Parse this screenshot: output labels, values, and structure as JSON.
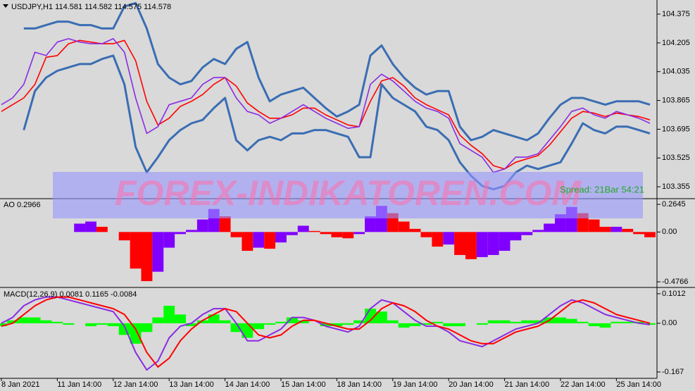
{
  "chart_data": [
    {
      "type": "line",
      "title": "USDJPY,H1  114.581 114.582 114.575 114.578",
      "annotation": "Spread: 21Bar  54:21",
      "watermark": "FOREX-INDIKATOREN.COM",
      "ylim": [
        103.293,
        104.45
      ],
      "yticks": [
        104.375,
        104.205,
        104.035,
        103.865,
        103.695,
        103.525,
        103.355
      ],
      "series": [
        {
          "color": "#3a6db3",
          "values": [
            null,
            null,
            104.29,
            104.29,
            104.31,
            104.33,
            104.33,
            104.31,
            104.31,
            104.29,
            104.29,
            104.42,
            104.44,
            104.29,
            104.08,
            104.0,
            103.96,
            103.98,
            104.06,
            104.11,
            104.08,
            104.17,
            104.21,
            104.0,
            103.86,
            103.9,
            103.92,
            103.94,
            103.88,
            103.82,
            103.77,
            103.8,
            103.84,
            104.13,
            104.19,
            104.08,
            104.0,
            103.94,
            103.9,
            103.92,
            103.92,
            103.71,
            103.63,
            103.65,
            103.69,
            103.67,
            103.65,
            103.63,
            103.67,
            103.76,
            103.84,
            103.88,
            103.88,
            103.86,
            103.84,
            103.86,
            103.86,
            103.86,
            103.84
          ]
        },
        {
          "color": "#3a6db3",
          "values": [
            null,
            null,
            103.69,
            103.92,
            104.0,
            104.04,
            104.06,
            104.08,
            104.08,
            104.11,
            104.13,
            103.96,
            103.59,
            103.44,
            103.53,
            103.63,
            103.69,
            103.73,
            103.75,
            103.82,
            103.88,
            103.63,
            103.57,
            103.63,
            103.65,
            103.63,
            103.67,
            103.67,
            103.69,
            103.69,
            103.67,
            103.65,
            103.53,
            103.53,
            103.96,
            103.88,
            103.84,
            103.8,
            103.71,
            103.69,
            103.63,
            103.5,
            103.42,
            103.36,
            103.34,
            103.36,
            103.44,
            103.48,
            103.46,
            103.48,
            103.5,
            103.61,
            103.73,
            103.69,
            103.67,
            103.71,
            103.71,
            103.69,
            103.67
          ]
        },
        {
          "color": "#ff0000",
          "values": [
            103.8,
            103.84,
            103.88,
            103.96,
            104.12,
            104.13,
            104.2,
            104.22,
            104.21,
            104.2,
            104.2,
            104.22,
            104.1,
            103.86,
            103.72,
            103.76,
            103.83,
            103.86,
            103.9,
            103.96,
            104.0,
            103.95,
            103.85,
            103.8,
            103.76,
            103.76,
            103.78,
            103.82,
            103.82,
            103.78,
            103.75,
            103.72,
            103.71,
            103.86,
            103.98,
            104.0,
            103.95,
            103.88,
            103.84,
            103.81,
            103.78,
            103.66,
            103.6,
            103.55,
            103.48,
            103.46,
            103.5,
            103.52,
            103.54,
            103.6,
            103.68,
            103.76,
            103.8,
            103.79,
            103.77,
            103.79,
            103.78,
            103.77,
            103.75
          ]
        },
        {
          "color": "#8a2be2",
          "values": [
            103.84,
            103.88,
            103.96,
            104.15,
            104.13,
            104.21,
            104.23,
            104.21,
            104.2,
            104.2,
            104.23,
            104.15,
            103.88,
            103.67,
            103.71,
            103.84,
            103.86,
            103.88,
            103.96,
            104.0,
            104.0,
            103.88,
            103.8,
            103.78,
            103.73,
            103.76,
            103.8,
            103.84,
            103.8,
            103.76,
            103.73,
            103.7,
            103.71,
            103.96,
            104.02,
            103.98,
            103.92,
            103.86,
            103.82,
            103.8,
            103.76,
            103.61,
            103.57,
            103.53,
            103.44,
            103.46,
            103.53,
            103.53,
            103.55,
            103.63,
            103.71,
            103.8,
            103.82,
            103.78,
            103.76,
            103.8,
            103.78,
            103.76,
            103.73
          ]
        }
      ]
    },
    {
      "type": "bar",
      "title": "AO 0.2966",
      "ylim": [
        -0.517,
        0.292
      ],
      "yticks": [
        0.2645,
        {
          "value": 0,
          "label": "0.00"
        },
        -0.4766
      ],
      "up_color": "#8000ff",
      "down_color": "#ff0000",
      "values": [
        0,
        0,
        0,
        0,
        0,
        0,
        0,
        0.08,
        0.1,
        0.05,
        0,
        -0.08,
        -0.35,
        -0.47,
        -0.38,
        -0.15,
        -0.02,
        0.02,
        0.12,
        0.22,
        0.15,
        -0.05,
        -0.18,
        -0.15,
        -0.16,
        -0.1,
        -0.03,
        0.06,
        0.01,
        -0.02,
        -0.05,
        -0.06,
        -0.02,
        0.15,
        0.25,
        0.18,
        0.1,
        0.03,
        -0.05,
        -0.14,
        -0.12,
        -0.22,
        -0.26,
        -0.24,
        -0.22,
        -0.18,
        -0.08,
        -0.03,
        0.02,
        0.08,
        0.17,
        0.24,
        0.18,
        0.12,
        0.05,
        0.05,
        0.03,
        -0.02,
        -0.05
      ]
    },
    {
      "type": "combo",
      "title": "MACD(12,26,9) 0.0081 0.1165 -0.0084",
      "ylim": [
        -0.184,
        0.118
      ],
      "yticks": [
        0.1012,
        {
          "value": 0,
          "label": "0.00"
        },
        -0.167
      ],
      "categories": [
        "8 Jan 2021",
        null,
        null,
        null,
        null,
        "11 Jan 14:00",
        null,
        null,
        null,
        null,
        "12 Jan 14:00",
        null,
        null,
        null,
        null,
        "13 Jan 14:00",
        null,
        null,
        null,
        null,
        "14 Jan 14:00",
        null,
        null,
        null,
        null,
        "15 Jan 14:00",
        null,
        null,
        null,
        null,
        "18 Jan 14:00",
        null,
        null,
        null,
        null,
        "19 Jan 14:00",
        null,
        null,
        null,
        null,
        "20 Jan 14:00",
        null,
        null,
        null,
        null,
        "21 Jan 14:00",
        null,
        null,
        null,
        null,
        "22 Jan 14:00",
        null,
        null,
        null,
        null,
        "25 Jan 14:00",
        null,
        null,
        null
      ],
      "series": [
        {
          "type": "bar",
          "color": "#00ff00",
          "values": [
            -0.01,
            0.01,
            0.02,
            0.02,
            0.01,
            0.005,
            -0.005,
            0,
            -0.01,
            -0.005,
            -0.01,
            -0.04,
            -0.07,
            -0.03,
            0.02,
            0.06,
            0.03,
            -0.01,
            0.01,
            0.03,
            0.01,
            -0.03,
            -0.05,
            -0.02,
            -0.005,
            0.005,
            0.02,
            0.01,
            0,
            -0.01,
            -0.01,
            -0.005,
            0.01,
            0.05,
            0.04,
            0.01,
            -0.015,
            -0.01,
            -0.005,
            0.005,
            -0.01,
            -0.01,
            0,
            -0.005,
            0.01,
            0.01,
            0.005,
            0.01,
            0.01,
            0.02,
            0.02,
            0.015,
            0.005,
            -0.01,
            -0.015,
            0.005,
            0.005,
            0.005,
            -0.005
          ]
        },
        {
          "type": "line",
          "color": "#8a2be2",
          "values": [
            0,
            0.02,
            0.06,
            0.08,
            0.09,
            0.09,
            0.08,
            0.07,
            0.06,
            0.05,
            0.04,
            -0.01,
            -0.1,
            -0.16,
            -0.13,
            -0.05,
            -0.01,
            0,
            0.03,
            0.05,
            0.05,
            0,
            -0.06,
            -0.06,
            -0.04,
            -0.02,
            0.02,
            0.02,
            0.01,
            -0.01,
            -0.02,
            -0.03,
            -0.01,
            0.05,
            0.08,
            0.07,
            0.04,
            0.01,
            -0.01,
            -0.01,
            -0.03,
            -0.06,
            -0.07,
            -0.08,
            -0.06,
            -0.04,
            -0.02,
            -0.01,
            0,
            0.03,
            0.06,
            0.08,
            0.07,
            0.05,
            0.03,
            0.02,
            0.01,
            0,
            -0.005
          ]
        },
        {
          "type": "line",
          "color": "#ff0000",
          "values": [
            -0.01,
            0,
            0.03,
            0.06,
            0.08,
            0.09,
            0.09,
            0.08,
            0.07,
            0.06,
            0.05,
            0.03,
            -0.02,
            -0.1,
            -0.15,
            -0.12,
            -0.06,
            -0.02,
            0.01,
            0.03,
            0.05,
            0.04,
            0,
            -0.04,
            -0.05,
            -0.04,
            -0.01,
            0.01,
            0.01,
            0,
            -0.01,
            -0.02,
            -0.02,
            0.01,
            0.05,
            0.07,
            0.06,
            0.04,
            0.01,
            -0.01,
            -0.02,
            -0.04,
            -0.06,
            -0.07,
            -0.07,
            -0.05,
            -0.03,
            -0.02,
            -0.01,
            0.01,
            0.04,
            0.07,
            0.08,
            0.07,
            0.05,
            0.03,
            0.02,
            0.01,
            0
          ]
        }
      ]
    }
  ]
}
